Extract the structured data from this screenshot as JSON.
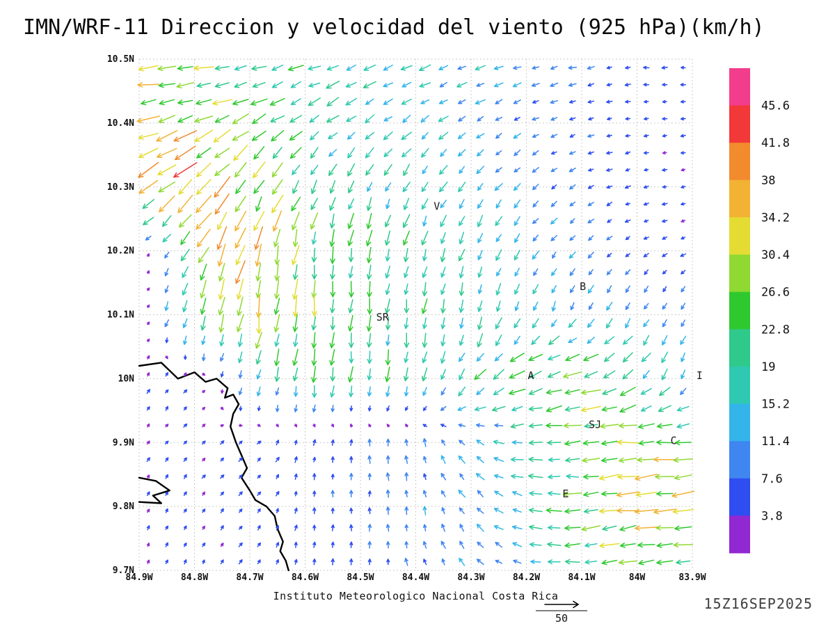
{
  "footer": {
    "institute": "Instituto Meteorologico Nacional Costa Rica",
    "timestamp": "15Z16SEP2025"
  },
  "chart_data": {
    "type": "vector_field",
    "title": "IMN/WRF-11 Direccion y velocidad del viento (925 hPa)(km/h)",
    "variable": "wind direction and speed at 925 hPa",
    "units": "km/h",
    "lon_range": [
      -84.9,
      -83.9
    ],
    "lat_range": [
      9.7,
      10.5
    ],
    "x_ticks": [
      "84.9W",
      "84.8W",
      "84.7W",
      "84.6W",
      "84.5W",
      "84.4W",
      "84.3W",
      "84.2W",
      "84.1W",
      "84W",
      "83.9W"
    ],
    "y_ticks": [
      "10.5N",
      "10.4N",
      "10.3N",
      "10.2N",
      "10.1N",
      "10N",
      "9.9N",
      "9.8N",
      "9.7N"
    ],
    "grid": "dotted",
    "colorbar": {
      "position": "right",
      "labels_top_to_bottom": [
        "45.6",
        "41.8",
        "38",
        "34.2",
        "30.4",
        "26.6",
        "22.8",
        "19",
        "15.2",
        "11.4",
        "7.6",
        "3.8"
      ],
      "levels_low_to_high": [
        3.8,
        7.6,
        11.4,
        15.2,
        19,
        22.8,
        26.6,
        30.4,
        34.2,
        38,
        41.8,
        45.6
      ],
      "colors_low_to_high": [
        "#9228d2",
        "#2e4ef2",
        "#3f86f0",
        "#33b5ea",
        "#2fc9b1",
        "#2fc98c",
        "#2fc92f",
        "#8fd932",
        "#e4dc33",
        "#f2b233",
        "#f28b2d",
        "#f23838",
        "#f23c8c"
      ]
    },
    "reference_vector": {
      "speed": 50,
      "label": "50"
    },
    "stations": [
      {
        "label": "V",
        "lon": -84.362,
        "lat": 10.27
      },
      {
        "label": "B",
        "lon": -84.098,
        "lat": 10.144
      },
      {
        "label": "SR",
        "lon": -84.46,
        "lat": 10.096
      },
      {
        "label": "A",
        "lon": -84.192,
        "lat": 10.005
      },
      {
        "label": "SJ",
        "lon": -84.076,
        "lat": 9.928
      },
      {
        "label": "C",
        "lon": -83.934,
        "lat": 9.903
      },
      {
        "label": "E",
        "lon": -84.129,
        "lat": 9.82
      },
      {
        "label": "I",
        "lon": -83.887,
        "lat": 10.005
      }
    ],
    "coastline": [
      [
        [
          -84.9,
          10.02
        ],
        [
          -84.86,
          10.025
        ],
        [
          -84.83,
          10.0
        ],
        [
          -84.8,
          10.01
        ],
        [
          -84.78,
          9.995
        ],
        [
          -84.76,
          10.0
        ],
        [
          -84.74,
          9.985
        ],
        [
          -84.745,
          9.97
        ],
        [
          -84.73,
          9.975
        ],
        [
          -84.72,
          9.96
        ],
        [
          -84.73,
          9.945
        ],
        [
          -84.735,
          9.925
        ],
        [
          -84.725,
          9.9
        ],
        [
          -84.715,
          9.88
        ],
        [
          -84.705,
          9.86
        ],
        [
          -84.715,
          9.845
        ],
        [
          -84.7,
          9.825
        ],
        [
          -84.69,
          9.81
        ],
        [
          -84.67,
          9.8
        ],
        [
          -84.655,
          9.785
        ],
        [
          -84.65,
          9.765
        ],
        [
          -84.64,
          9.745
        ],
        [
          -84.645,
          9.73
        ],
        [
          -84.635,
          9.715
        ],
        [
          -84.63,
          9.7
        ]
      ],
      [
        [
          -84.9,
          9.845
        ],
        [
          -84.87,
          9.84
        ],
        [
          -84.845,
          9.825
        ],
        [
          -84.875,
          9.817
        ],
        [
          -84.86,
          9.805
        ],
        [
          -84.9,
          9.807
        ]
      ]
    ],
    "wind_grid": {
      "comment": "coarse sampled field read from plot; dir_toward_deg: 0=E,90=N,180=W,270=S; speed km/h",
      "lons": [
        -84.9,
        -84.8,
        -84.7,
        -84.6,
        -84.5,
        -84.4,
        -84.3,
        -84.2,
        -84.1,
        -84.0,
        -83.9
      ],
      "lats": [
        10.5,
        10.4,
        10.3,
        10.2,
        10.1,
        10.0,
        9.9,
        9.8,
        9.7
      ],
      "speed": [
        [
          26,
          25,
          22,
          19,
          18,
          16,
          14,
          11,
          8,
          6,
          5
        ],
        [
          30,
          31,
          25,
          19,
          16,
          14,
          12,
          9,
          7,
          5,
          4
        ],
        [
          34,
          39,
          29,
          21,
          18,
          16,
          14,
          10,
          7,
          5,
          4
        ],
        [
          6,
          29,
          35,
          25,
          21,
          19,
          16,
          13,
          9,
          6,
          5
        ],
        [
          5,
          25,
          31,
          25,
          21,
          19,
          17,
          15,
          13,
          11,
          9
        ],
        [
          4,
          5,
          14,
          20,
          19,
          17,
          19,
          25,
          27,
          20,
          14
        ],
        [
          4,
          4,
          5,
          6,
          8,
          9,
          12,
          17,
          23,
          28,
          26
        ],
        [
          4,
          4,
          5,
          6,
          8,
          9,
          12,
          16,
          25,
          31,
          29
        ],
        [
          4,
          4,
          5,
          6,
          7,
          8,
          10,
          14,
          19,
          25,
          23
        ]
      ],
      "dir_toward_deg": [
        [
          185,
          190,
          195,
          198,
          200,
          202,
          200,
          196,
          190,
          185,
          182
        ],
        [
          192,
          200,
          210,
          213,
          215,
          218,
          214,
          205,
          196,
          188,
          182
        ],
        [
          212,
          225,
          235,
          242,
          245,
          242,
          232,
          220,
          208,
          198,
          190
        ],
        [
          60,
          240,
          255,
          260,
          261,
          256,
          249,
          238,
          224,
          210,
          200
        ],
        [
          70,
          250,
          262,
          266,
          266,
          264,
          259,
          253,
          247,
          242,
          238
        ],
        [
          60,
          55,
          250,
          262,
          264,
          258,
          232,
          202,
          192,
          225,
          255
        ],
        [
          55,
          45,
          40,
          75,
          88,
          95,
          140,
          182,
          184,
          181,
          180
        ],
        [
          65,
          55,
          48,
          82,
          90,
          98,
          125,
          168,
          184,
          187,
          184
        ],
        [
          75,
          65,
          58,
          80,
          90,
          100,
          132,
          168,
          185,
          190,
          187
        ]
      ]
    },
    "arrow_density": {
      "cols": 30,
      "rows": 30
    }
  }
}
